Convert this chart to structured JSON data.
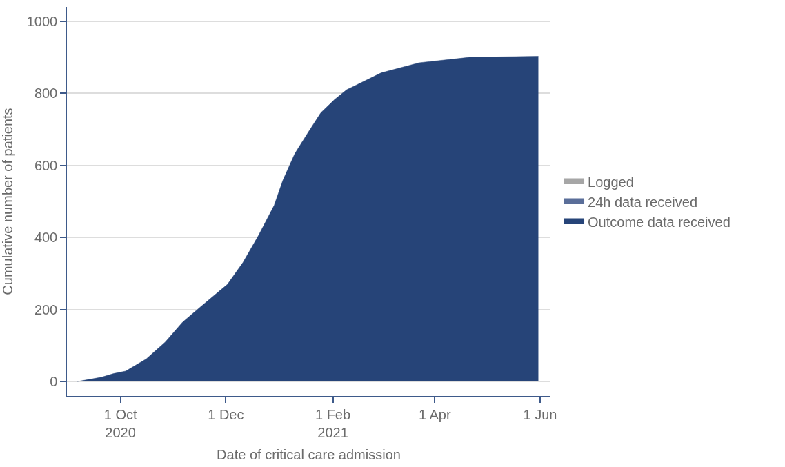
{
  "chart_data": {
    "type": "area",
    "xlabel": "Date of critical care admission",
    "ylabel": "Cumulative number of patients",
    "x": [
      "2020-09-06",
      "2020-09-20",
      "2020-09-27",
      "2020-10-04",
      "2020-10-16",
      "2020-10-27",
      "2020-11-06",
      "2020-11-17",
      "2020-12-02",
      "2020-12-11",
      "2020-12-20",
      "2020-12-29",
      "2021-01-03",
      "2021-01-10",
      "2021-01-18",
      "2021-01-25",
      "2021-02-02",
      "2021-02-09",
      "2021-03-01",
      "2021-03-23",
      "2021-04-21",
      "2021-05-31"
    ],
    "series": [
      {
        "name": "Logged",
        "color": "#a6a6a6",
        "values": [
          null,
          null,
          null,
          null,
          null,
          null,
          null,
          null,
          null,
          null,
          null,
          null,
          null,
          null,
          null,
          null,
          null,
          null,
          null,
          null,
          null,
          null
        ]
      },
      {
        "name": "24h data received",
        "color": "#5a6e99",
        "values": [
          null,
          null,
          null,
          null,
          null,
          null,
          null,
          null,
          null,
          null,
          null,
          null,
          null,
          null,
          null,
          null,
          null,
          null,
          null,
          null,
          null,
          null
        ]
      },
      {
        "name": "Outcome data received",
        "color": "#264478",
        "values": [
          0,
          12,
          22,
          29,
          63,
          110,
          165,
          210,
          270,
          331,
          406,
          489,
          558,
          633,
          694,
          746,
          783,
          810,
          857,
          885,
          900,
          903
        ]
      }
    ],
    "xlim": [
      "2020-08-31",
      "2021-06-07"
    ],
    "xticks": [
      {
        "value": "2020-10-01",
        "label": "1 Oct\n2020"
      },
      {
        "value": "2020-12-01",
        "label": "1 Dec"
      },
      {
        "value": "2021-02-01",
        "label": "1 Feb\n2021"
      },
      {
        "value": "2021-04-01",
        "label": "1 Apr"
      },
      {
        "value": "2021-06-01",
        "label": "1 Jun"
      }
    ],
    "ylim": [
      -40,
      1040
    ],
    "yticks": [
      0,
      200,
      400,
      600,
      800,
      1000
    ],
    "grid": "y",
    "legend": "right"
  }
}
